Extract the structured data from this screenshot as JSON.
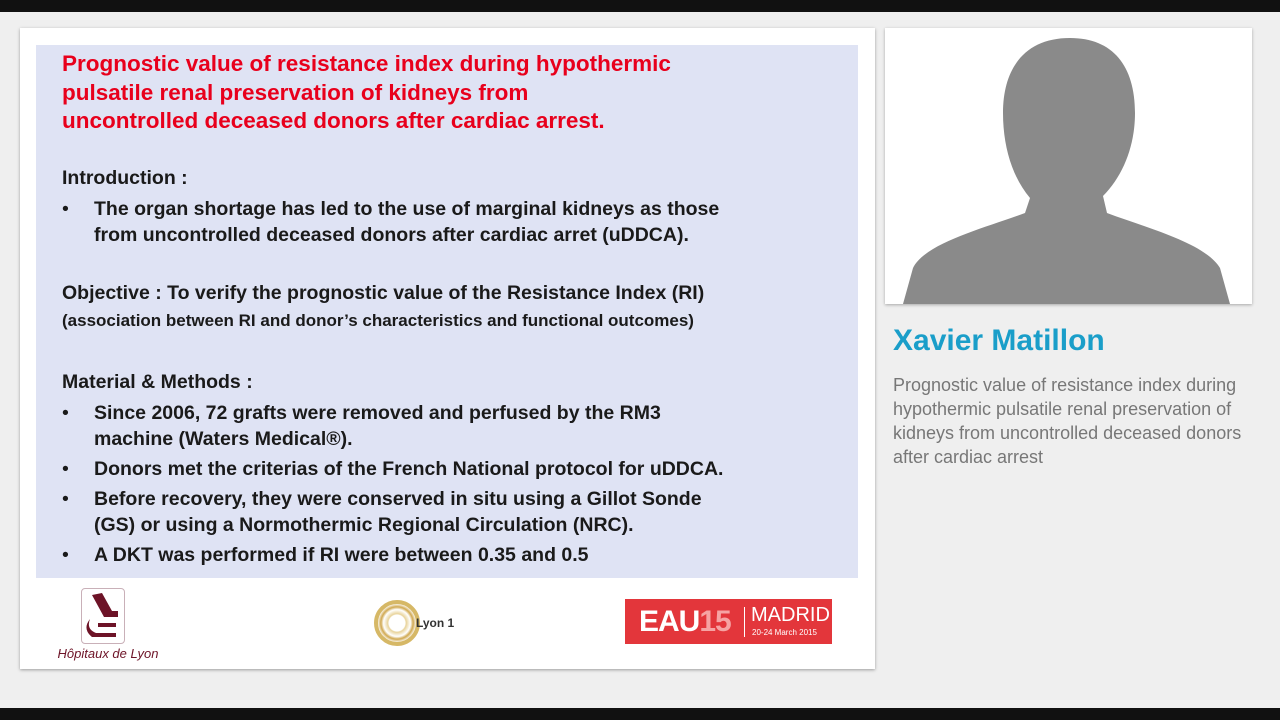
{
  "slide": {
    "title_lines": [
      "Prognostic value of resistance index during hypothermic",
      "pulsatile renal preservation of kidneys from",
      "uncontrolled deceased donors after cardiac arrest."
    ],
    "intro_heading": "Introduction :",
    "intro_bullets": [
      [
        "The organ shortage has led to the use of marginal kidneys as those",
        "from uncontrolled deceased donors after cardiac arret (uDDCA)."
      ]
    ],
    "objective": "Objective : To verify the prognostic value of the Resistance Index (RI)",
    "objective_sub": "(association between RI and donor’s characteristics and functional outcomes)",
    "methods_heading": "Material & Methods :",
    "methods_bullets": [
      [
        "Since 2006, 72 grafts were removed and perfused by the RM3",
        "machine (Waters Medical®)."
      ],
      [
        "Donors met the criterias of the French National protocol for uDDCA."
      ],
      [
        "Before recovery, they were conserved in situ using a Gillot Sonde",
        "(GS) or using a Normothermic Regional Circulation (NRC)."
      ],
      [
        "A DKT was performed if RI were between 0.35 and 0.5"
      ]
    ],
    "bullet": "•",
    "logos": {
      "hospital": "Hôpitaux de Lyon",
      "university": "Lyon 1",
      "congress_eau": "EAU",
      "congress_year": "15",
      "congress_city": "MADRID",
      "congress_dates": "20-24 March 2015"
    }
  },
  "speaker": {
    "name": "Xavier Matillon",
    "description": "Prognostic value of resistance index during hypothermic pulsatile renal preservation of kidneys from uncontrolled deceased donors after cardiac arrest"
  },
  "colors": {
    "title": "#e8001c",
    "name": "#1a9ec9",
    "panel": "#dfe3f4"
  }
}
